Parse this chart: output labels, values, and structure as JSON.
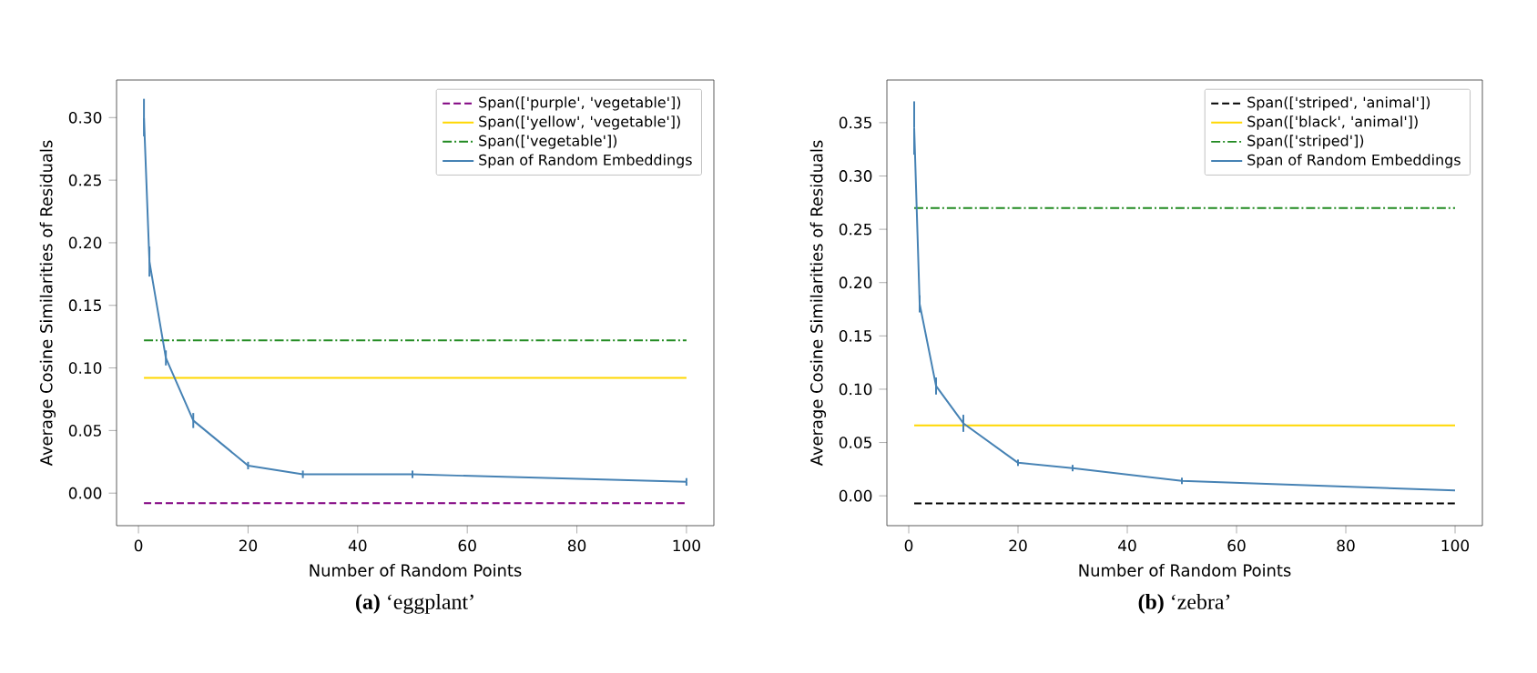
{
  "chart_data": [
    {
      "type": "line",
      "xlabel": "Number of Random Points",
      "ylabel": "Average Cosine Similarities of Residuals",
      "legend": "top right",
      "marker": "none",
      "xlim": [
        -4,
        105
      ],
      "ylim": [
        -0.026,
        0.33
      ],
      "xticks": [
        0,
        20,
        40,
        60,
        80,
        100
      ],
      "yticks": [
        {
          "value": 0,
          "label": "0.00"
        },
        {
          "value": 0.05,
          "label": "0.05"
        },
        {
          "value": 0.1,
          "label": "0.10"
        },
        {
          "value": 0.15,
          "label": "0.15"
        },
        {
          "value": 0.2,
          "label": "0.20"
        },
        {
          "value": 0.25,
          "label": "0.25"
        },
        {
          "value": 0.3,
          "label": "0.30"
        }
      ],
      "series": [
        {
          "name": "Span(['purple', 'vegetable'])",
          "color": "#800080",
          "line_style": "dashed",
          "x": [
            1,
            100
          ],
          "values": [
            -0.008,
            -0.008
          ]
        },
        {
          "name": "Span(['yellow', 'vegetable'])",
          "color": "#ffd700",
          "line_style": "solid",
          "x": [
            1,
            100
          ],
          "values": [
            0.092,
            0.092
          ]
        },
        {
          "name": "Span(['vegetable'])",
          "color": "#228b22",
          "line_style": "dashdot",
          "x": [
            1,
            100
          ],
          "values": [
            0.122,
            0.122
          ]
        },
        {
          "name": "Span of Random Embeddings",
          "color": "#4682b4",
          "line_style": "solid",
          "x": [
            1,
            2,
            5,
            10,
            20,
            30,
            50,
            100
          ],
          "values": [
            0.3,
            0.185,
            0.108,
            0.058,
            0.022,
            0.015,
            0.015,
            0.009
          ],
          "errors": [
            0.015,
            0.012,
            0.006,
            0.006,
            0.003,
            0.003,
            0.003,
            0.003
          ]
        }
      ],
      "annotations": [
        "**(a)** ‘eggplant’"
      ]
    },
    {
      "type": "line",
      "xlabel": "Number of Random Points",
      "ylabel": "Average Cosine Similarities of Residuals",
      "legend": "top right",
      "marker": "none",
      "xlim": [
        -4,
        105
      ],
      "ylim": [
        -0.028,
        0.39
      ],
      "xticks": [
        0,
        20,
        40,
        60,
        80,
        100
      ],
      "yticks": [
        {
          "value": 0,
          "label": "0.00"
        },
        {
          "value": 0.05,
          "label": "0.05"
        },
        {
          "value": 0.1,
          "label": "0.10"
        },
        {
          "value": 0.15,
          "label": "0.15"
        },
        {
          "value": 0.2,
          "label": "0.20"
        },
        {
          "value": 0.25,
          "label": "0.25"
        },
        {
          "value": 0.3,
          "label": "0.30"
        },
        {
          "value": 0.35,
          "label": "0.35"
        }
      ],
      "series": [
        {
          "name": "Span(['striped', 'animal'])",
          "color": "#000000",
          "line_style": "dashed",
          "x": [
            1,
            100
          ],
          "values": [
            -0.007,
            -0.007
          ]
        },
        {
          "name": "Span(['black', 'animal'])",
          "color": "#ffd700",
          "line_style": "solid",
          "x": [
            1,
            100
          ],
          "values": [
            0.066,
            0.066
          ]
        },
        {
          "name": "Span(['striped'])",
          "color": "#228b22",
          "line_style": "dashdot",
          "x": [
            1,
            100
          ],
          "values": [
            0.27,
            0.27
          ]
        },
        {
          "name": "Span of Random Embeddings",
          "color": "#4682b4",
          "line_style": "solid",
          "x": [
            1,
            2,
            5,
            10,
            20,
            30,
            50,
            100
          ],
          "values": [
            0.345,
            0.18,
            0.103,
            0.068,
            0.031,
            0.026,
            0.014,
            0.005
          ],
          "errors": [
            0.025,
            0.008,
            0.008,
            0.008,
            0.003,
            0.003,
            0.003,
            null
          ]
        }
      ],
      "annotations": [
        "**(b)** ‘zebra’"
      ]
    }
  ]
}
